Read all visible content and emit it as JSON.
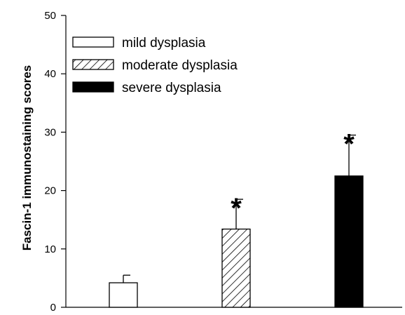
{
  "chart_data": {
    "type": "bar",
    "ylabel": "Fascin-1 immunostaining scores",
    "xlabel": "",
    "ylim": [
      0,
      50
    ],
    "yticks": [
      0,
      10,
      20,
      30,
      40,
      50
    ],
    "grid": false,
    "legend_position": "top-left",
    "series": [
      {
        "name": "mild dysplasia",
        "value": 4.2,
        "error": 1.3,
        "fill": "white",
        "significance": ""
      },
      {
        "name": "moderate dysplasia",
        "value": 13.4,
        "error": 5.1,
        "fill": "hatched",
        "significance": "*"
      },
      {
        "name": "severe dysplasia",
        "value": 22.5,
        "error": 7.0,
        "fill": "black",
        "significance": "*"
      }
    ]
  },
  "colors": {
    "bar_edge": "#000000",
    "mild_fill": "#ffffff",
    "severe_fill": "#000000",
    "hatch": "#000000"
  }
}
